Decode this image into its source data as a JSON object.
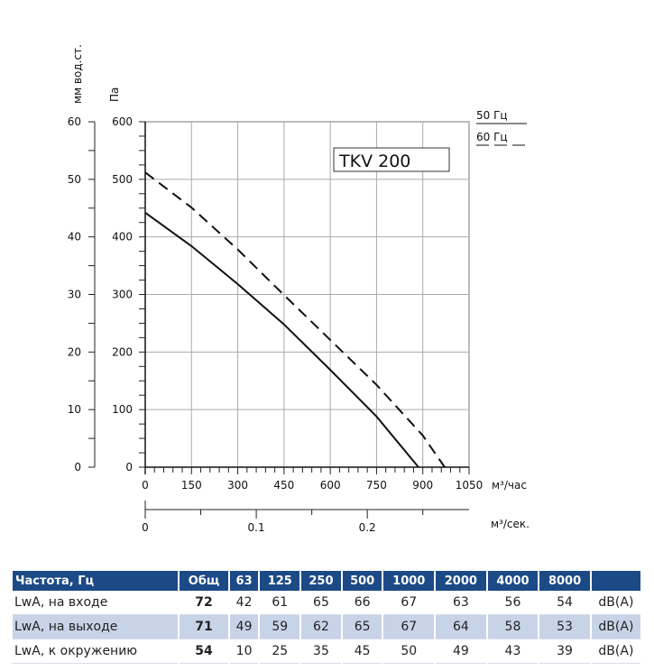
{
  "chart_data": {
    "type": "line",
    "title": "TKV 200",
    "xlabel": "м³/час",
    "x2label": "м³/сек.",
    "ylabel": "Па",
    "y2label": "мм вод.ст.",
    "xlim": [
      0,
      1050
    ],
    "ylim": [
      0,
      600
    ],
    "xticks": [
      "0",
      "150",
      "300",
      "450",
      "600",
      "750",
      "900",
      "1050"
    ],
    "x2ticks": [
      "0",
      "0.1",
      "0.2"
    ],
    "yticks": [
      "0",
      "100",
      "200",
      "300",
      "400",
      "500",
      "600"
    ],
    "y2ticks": [
      "0",
      "10",
      "20",
      "30",
      "40",
      "50",
      "60"
    ],
    "grid": true,
    "legend": {
      "placement": "top-right",
      "entries": [
        "50 Гц",
        "60 Гц"
      ]
    },
    "series": [
      {
        "name": "50 Гц",
        "style": "solid",
        "x": [
          0,
          150,
          300,
          450,
          600,
          750,
          886
        ],
        "y": [
          442,
          384,
          318,
          248,
          169,
          88,
          0
        ]
      },
      {
        "name": "60 Гц",
        "style": "dashed",
        "x": [
          0,
          150,
          300,
          450,
          600,
          750,
          900,
          971
        ],
        "y": [
          512,
          451,
          378,
          299,
          221,
          143,
          55,
          0
        ]
      }
    ]
  },
  "table": {
    "headers": [
      "Частота, Гц",
      "Общ",
      "63",
      "125",
      "250",
      "500",
      "1000",
      "2000",
      "4000",
      "8000",
      ""
    ],
    "rows": [
      {
        "label": "LwA, на входе",
        "total": "72",
        "values": [
          "42",
          "61",
          "65",
          "66",
          "67",
          "63",
          "56",
          "54"
        ],
        "unit": "dB(A)"
      },
      {
        "label": "LwA, на выходе",
        "total": "71",
        "values": [
          "49",
          "59",
          "62",
          "65",
          "67",
          "64",
          "58",
          "53"
        ],
        "unit": "dB(A)"
      },
      {
        "label": "LwA, к окружению",
        "total": "54",
        "values": [
          "10",
          "25",
          "35",
          "45",
          "50",
          "49",
          "43",
          "39"
        ],
        "unit": "dB(A)"
      }
    ]
  },
  "colors": {
    "header": "#1c4a86",
    "alt_row": "#c9d3e8",
    "grid": "#aaaaaa"
  }
}
